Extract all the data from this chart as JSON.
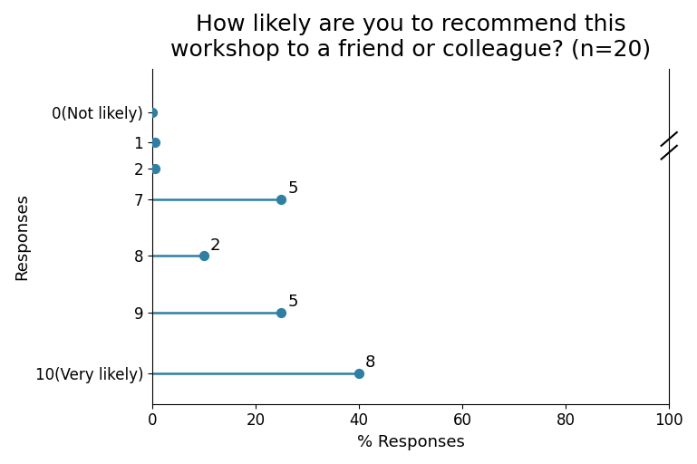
{
  "title": "How likely are you to recommend this\nworkshop to a friend or colleague? (n=20)",
  "xlabel": "% Responses",
  "ylabel": "Responses",
  "categories": [
    "0(Not likely)",
    "1",
    "2",
    "7",
    "8",
    "9",
    "10(Very likely)"
  ],
  "y_positions": [
    6,
    5.3,
    4.7,
    4.0,
    2.7,
    1.4,
    0.0
  ],
  "pct_values": [
    0.0,
    0.5,
    0.5,
    25.0,
    10.0,
    25.0,
    40.0
  ],
  "counts": [
    0,
    0,
    0,
    5,
    2,
    5,
    8
  ],
  "dot_color": "#2e7fa3",
  "line_color": "#2e7fa3",
  "xlim": [
    0,
    100
  ],
  "ylim": [
    -0.7,
    7.0
  ],
  "title_fontsize": 18,
  "label_fontsize": 13,
  "tick_fontsize": 12,
  "annot_fontsize": 13,
  "dot_size": 50,
  "linewidth": 1.8
}
